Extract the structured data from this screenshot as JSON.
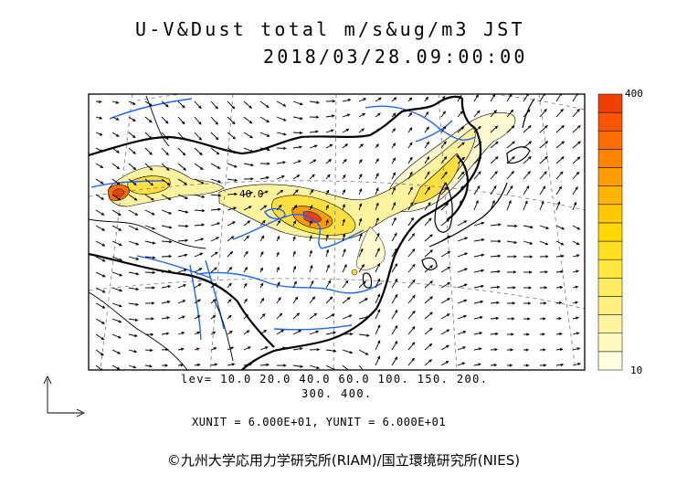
{
  "title": {
    "line1": "U-V&Dust total m/s&ug/m3 JST",
    "line2": "2018/03/28.09:00:00"
  },
  "map": {
    "contour_label": "40.0",
    "dust_color_scale": [
      "#fffde0",
      "#fff9c0",
      "#fff4a0",
      "#fff080",
      "#ffec60",
      "#ffe640",
      "#ffe020",
      "#ffd800",
      "#ffc800",
      "#ffb400",
      "#ff9c00",
      "#ff8400",
      "#ff6c00",
      "#ff5400",
      "#f04000"
    ]
  },
  "levels": {
    "line1": "lev= 10.0 20.0 40.0 60.0 100. 150. 200.",
    "line2": "300. 400."
  },
  "units": "XUNIT = 6.000E+01, YUNIT = 6.000E+01",
  "colorbar": {
    "max_label": "400",
    "min_label": "10"
  },
  "copyright": "©九州大学応用力学研究所(RIAM)/国立環境研究所(NIES)"
}
